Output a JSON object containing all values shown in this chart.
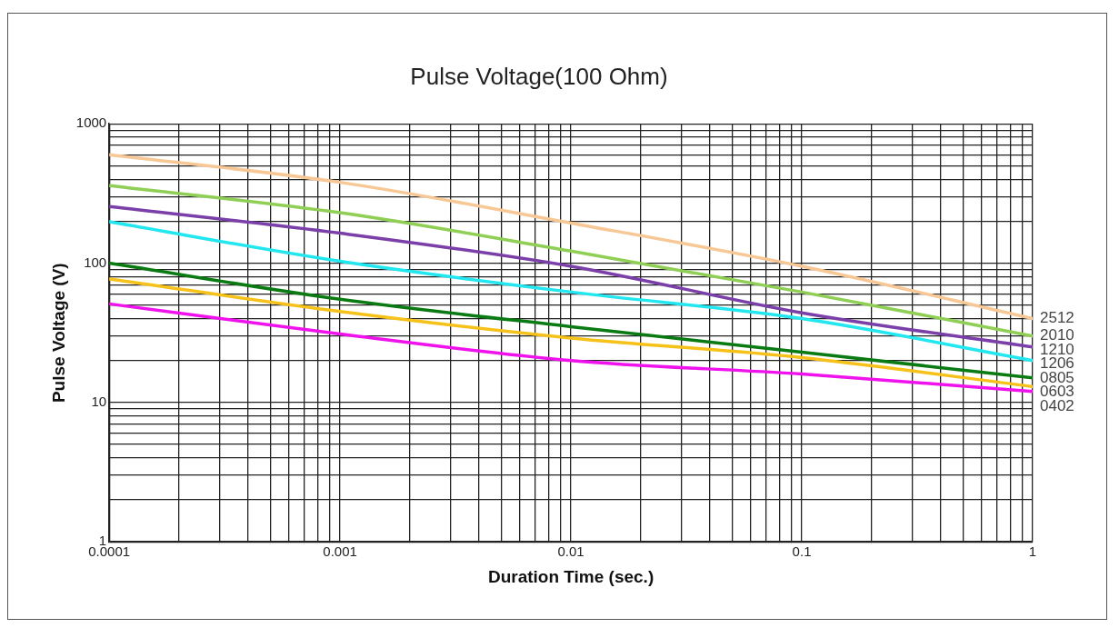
{
  "chart_data": {
    "type": "line",
    "title": "Pulse Voltage(100 Ohm)",
    "xlabel": "Duration Time (sec.)",
    "ylabel": "Pulse Voltage (V)",
    "log": "xy",
    "grid": true,
    "legend": false,
    "marker": "none",
    "line_style": "solid",
    "x": [
      0.0001,
      0.001,
      0.01,
      0.1,
      1
    ],
    "xlim": [
      0.0001,
      1
    ],
    "ylim": [
      1,
      1000
    ],
    "xticks": [
      0.0001,
      {
        "value": 0.0002,
        "label": null
      },
      {
        "value": 0.0003,
        "label": null
      },
      {
        "value": 0.0004,
        "label": null
      },
      {
        "value": 0.0005,
        "label": null
      },
      {
        "value": 0.0006,
        "label": null
      },
      {
        "value": 0.0007,
        "label": null
      },
      {
        "value": 0.0008,
        "label": null
      },
      {
        "value": 0.0009,
        "label": null
      },
      0.001,
      {
        "value": 0.002,
        "label": null
      },
      {
        "value": 0.003,
        "label": null
      },
      {
        "value": 0.004,
        "label": null
      },
      {
        "value": 0.005,
        "label": null
      },
      {
        "value": 0.006,
        "label": null
      },
      {
        "value": 0.007,
        "label": null
      },
      {
        "value": 0.008,
        "label": null
      },
      {
        "value": 0.009,
        "label": null
      },
      0.01,
      {
        "value": 0.02,
        "label": null
      },
      {
        "value": 0.03,
        "label": null
      },
      {
        "value": 0.04,
        "label": null
      },
      {
        "value": 0.05,
        "label": null
      },
      {
        "value": 0.06,
        "label": null
      },
      {
        "value": 0.07,
        "label": null
      },
      {
        "value": 0.08,
        "label": null
      },
      {
        "value": 0.09,
        "label": null
      },
      0.1,
      {
        "value": 0.2,
        "label": null
      },
      {
        "value": 0.3,
        "label": null
      },
      {
        "value": 0.4,
        "label": null
      },
      {
        "value": 0.5,
        "label": null
      },
      {
        "value": 0.6,
        "label": null
      },
      {
        "value": 0.7,
        "label": null
      },
      {
        "value": 0.8,
        "label": null
      },
      {
        "value": 0.9,
        "label": null
      },
      1
    ],
    "yticks": [
      1,
      {
        "value": 2,
        "label": null
      },
      {
        "value": 3,
        "label": null
      },
      {
        "value": 4,
        "label": null
      },
      {
        "value": 5,
        "label": null
      },
      {
        "value": 6,
        "label": null
      },
      {
        "value": 7,
        "label": null
      },
      {
        "value": 8,
        "label": null
      },
      {
        "value": 9,
        "label": null
      },
      10,
      {
        "value": 20,
        "label": null
      },
      {
        "value": 30,
        "label": null
      },
      {
        "value": 40,
        "label": null
      },
      {
        "value": 50,
        "label": null
      },
      {
        "value": 60,
        "label": null
      },
      {
        "value": 70,
        "label": null
      },
      {
        "value": 80,
        "label": null
      },
      {
        "value": 90,
        "label": null
      },
      100,
      {
        "value": 200,
        "label": null
      },
      {
        "value": 300,
        "label": null
      },
      {
        "value": 400,
        "label": null
      },
      {
        "value": 500,
        "label": null
      },
      {
        "value": 600,
        "label": null
      },
      {
        "value": 700,
        "label": null
      },
      {
        "value": 800,
        "label": null
      },
      {
        "value": 900,
        "label": null
      },
      1000
    ],
    "series": [
      {
        "name": "2512",
        "color": "#f7c896",
        "values": [
          600,
          380,
          194,
          95,
          40
        ]
      },
      {
        "name": "2010",
        "color": "#8fcf55",
        "values": [
          360,
          230,
          122,
          62,
          30
        ]
      },
      {
        "name": "1210",
        "color": "#7a3fa8",
        "values": [
          255,
          164,
          95,
          44,
          25
        ]
      },
      {
        "name": "1206",
        "color": "#22e6f0",
        "values": [
          198,
          103,
          62,
          40,
          20
        ]
      },
      {
        "name": "0805",
        "color": "#0a7a12",
        "values": [
          100,
          55,
          35,
          23,
          15
        ]
      },
      {
        "name": "0603",
        "color": "#f6c21a",
        "values": [
          77,
          45,
          29,
          21,
          13
        ]
      },
      {
        "name": "0402",
        "color": "#f012ec",
        "values": [
          51,
          31,
          20,
          16,
          12
        ]
      }
    ]
  }
}
